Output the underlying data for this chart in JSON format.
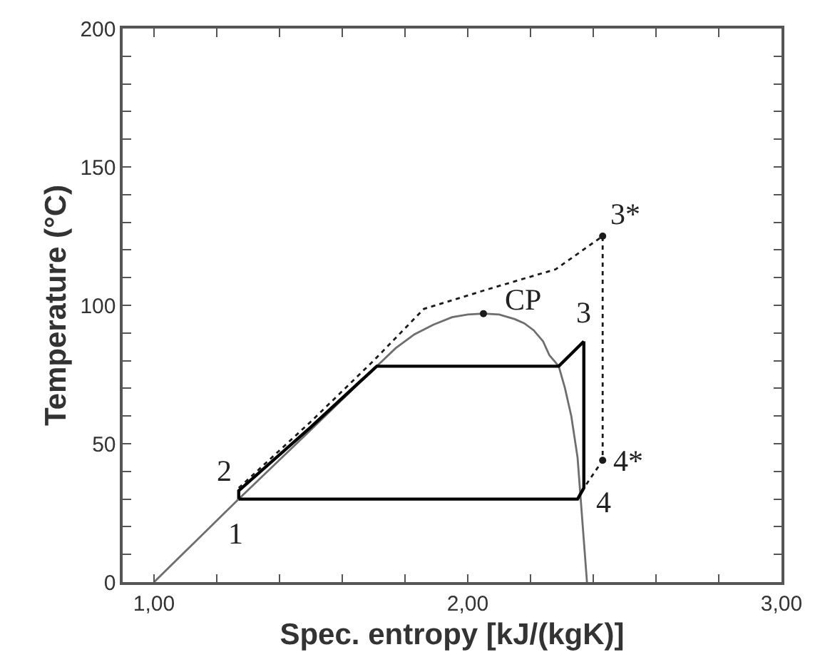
{
  "chart_data": {
    "type": "line",
    "xlabel": "Spec. entropy [kJ/(kgK)]",
    "ylabel": "Temperature (°C)",
    "xlim": [
      0.9,
      3.0
    ],
    "ylim": [
      0,
      200
    ],
    "xticks": [
      {
        "value": 1.0,
        "label": "1,00"
      },
      {
        "value": 1.2,
        "label": null
      },
      {
        "value": 1.4,
        "label": null
      },
      {
        "value": 1.6,
        "label": null
      },
      {
        "value": 1.8,
        "label": null
      },
      {
        "value": 2.0,
        "label": "2,00"
      },
      {
        "value": 2.2,
        "label": null
      },
      {
        "value": 2.4,
        "label": null
      },
      {
        "value": 2.6,
        "label": null
      },
      {
        "value": 2.8,
        "label": null
      },
      {
        "value": 3.0,
        "label": "3,00"
      }
    ],
    "yticks": [
      0,
      {
        "value": 10,
        "label": null
      },
      {
        "value": 20,
        "label": null
      },
      {
        "value": 30,
        "label": null
      },
      {
        "value": 40,
        "label": null
      },
      50,
      {
        "value": 60,
        "label": null
      },
      {
        "value": 70,
        "label": null
      },
      {
        "value": 80,
        "label": null
      },
      {
        "value": 90,
        "label": null
      },
      100,
      {
        "value": 110,
        "label": null
      },
      {
        "value": 120,
        "label": null
      },
      {
        "value": 130,
        "label": null
      },
      {
        "value": 140,
        "label": null
      },
      150,
      {
        "value": 160,
        "label": null
      },
      {
        "value": 170,
        "label": null
      },
      {
        "value": 180,
        "label": null
      },
      {
        "value": 190,
        "label": null
      },
      200
    ],
    "series": [
      {
        "color": "#6e6e6e",
        "line_style": "solid",
        "marker": "none",
        "x": [
          1.0,
          1.27,
          1.5,
          1.71,
          1.77,
          1.83,
          1.89,
          1.95,
          2.0,
          2.05,
          2.1,
          2.15,
          2.18,
          2.21,
          2.24,
          2.26,
          2.29,
          2.31,
          2.33,
          2.35,
          2.36,
          2.37,
          2.38
        ],
        "values": [
          0,
          30,
          55,
          78,
          84.5,
          89.5,
          93,
          95.7,
          96.7,
          97,
          96.7,
          95,
          93.5,
          91,
          87,
          82,
          78,
          70,
          60,
          45,
          30,
          15,
          0
        ]
      },
      {
        "color": "#000000",
        "line_style": "solid",
        "marker": "none",
        "x": [
          1.27,
          1.27,
          1.5,
          1.71,
          2.29,
          2.37
        ],
        "values": [
          30,
          33,
          56,
          78,
          78,
          87
        ]
      },
      {
        "color": "#000000",
        "line_style": "solid",
        "marker": "none",
        "x": [
          1.27,
          2.35,
          2.37,
          2.37
        ],
        "values": [
          30,
          30,
          34,
          87
        ]
      },
      {
        "color": "#1a1a1a",
        "line_style": "dotted",
        "marker": "none",
        "x": [
          1.27,
          1.5,
          1.7,
          1.86,
          2.07,
          2.28,
          2.43,
          2.43,
          2.37
        ],
        "values": [
          34,
          58,
          80,
          98.7,
          106,
          113,
          125,
          44,
          34
        ]
      },
      {
        "type": "scatter",
        "color": "#1a1a1a",
        "marker": "circle",
        "x": [
          2.05,
          2.43,
          2.43
        ],
        "values": [
          97,
          125,
          44
        ]
      }
    ],
    "annotations": [
      {
        "text": "1",
        "x": 1.27,
        "y": 30
      },
      {
        "text": "2",
        "x": 1.27,
        "y": 33
      },
      {
        "text": "3",
        "x": 2.37,
        "y": 87
      },
      {
        "text": "4",
        "x": 2.37,
        "y": 34
      },
      {
        "text": "3*",
        "x": 2.43,
        "y": 125
      },
      {
        "text": "4*",
        "x": 2.43,
        "y": 44
      },
      {
        "text": "CP",
        "x": 2.05,
        "y": 97
      }
    ]
  }
}
